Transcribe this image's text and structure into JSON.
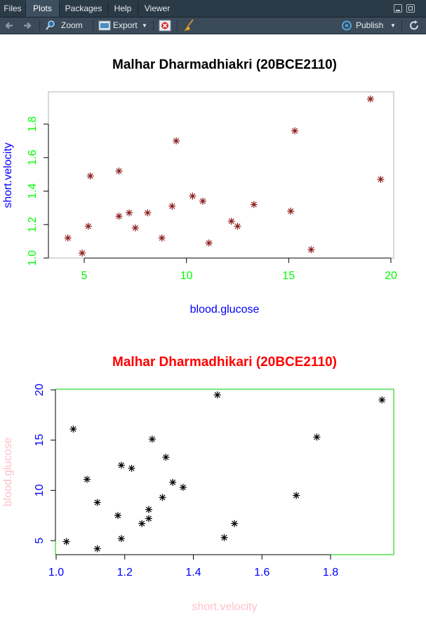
{
  "tabs": [
    {
      "label": "Files"
    },
    {
      "label": "Plots"
    },
    {
      "label": "Packages"
    },
    {
      "label": "Help"
    },
    {
      "label": "Viewer"
    }
  ],
  "toolbar": {
    "zoom_label": "Zoom",
    "export_label": "Export",
    "publish_label": "Publish"
  },
  "icons": [
    "back-arrow-icon",
    "forward-arrow-icon",
    "zoom-icon",
    "export-icon",
    "remove-plot-icon",
    "broom-icon",
    "publish-icon",
    "refresh-icon",
    "minimize-icon",
    "maximize-icon"
  ],
  "chart_data": [
    {
      "type": "scatter",
      "title": "Malhar Dharmadhiakri (20BCE2110)",
      "xlabel": "blood.glucose",
      "ylabel": "short.velocity",
      "xlim": [
        3.5,
        20.0
      ],
      "ylim": [
        1.0,
        2.0
      ],
      "xticks": [
        5,
        10,
        15,
        20
      ],
      "yticks": [
        1.0,
        1.2,
        1.4,
        1.6,
        1.8
      ],
      "x": [
        4.2,
        4.9,
        5.2,
        5.3,
        6.7,
        6.7,
        7.2,
        7.5,
        8.1,
        8.8,
        9.3,
        9.5,
        10.3,
        10.8,
        11.1,
        12.2,
        12.5,
        13.3,
        15.1,
        15.3,
        16.1,
        19.0,
        19.5
      ],
      "y": [
        1.12,
        1.03,
        1.19,
        1.49,
        1.52,
        1.25,
        1.27,
        1.18,
        1.27,
        1.12,
        1.31,
        1.7,
        1.37,
        1.34,
        1.09,
        1.22,
        1.19,
        1.32,
        1.28,
        1.76,
        1.05,
        1.95,
        1.47
      ],
      "marker": "*",
      "colors": {
        "title": "#000000",
        "axis_labels": "#0000ff",
        "tick_labels": "#00ff00",
        "points": "#8b1a1a",
        "box": "#b3b3b3"
      }
    },
    {
      "type": "scatter",
      "title": "Malhar Dharmadhikari (20BCE2110)",
      "xlabel": "short.velocity",
      "ylabel": "blood.glucose",
      "xlim": [
        1.0,
        2.0
      ],
      "ylim": [
        3.5,
        20.0
      ],
      "xticks": [
        1.0,
        1.2,
        1.4,
        1.6,
        1.8
      ],
      "yticks": [
        5,
        10,
        15,
        20
      ],
      "x": [
        1.12,
        1.03,
        1.19,
        1.49,
        1.52,
        1.25,
        1.27,
        1.18,
        1.27,
        1.12,
        1.31,
        1.7,
        1.37,
        1.34,
        1.09,
        1.22,
        1.19,
        1.32,
        1.28,
        1.76,
        1.05,
        1.95,
        1.47
      ],
      "y": [
        4.2,
        4.9,
        5.2,
        5.3,
        6.7,
        6.7,
        7.2,
        7.5,
        8.1,
        8.8,
        9.3,
        9.5,
        10.3,
        10.8,
        11.1,
        12.2,
        12.5,
        13.3,
        15.1,
        15.3,
        16.1,
        19.0,
        19.5
      ],
      "marker": "*",
      "colors": {
        "title": "#ff0000",
        "axis_labels": "#ffc0cb",
        "tick_labels": "#0000ff",
        "points": "#000000",
        "box": "#00cc00"
      }
    }
  ]
}
